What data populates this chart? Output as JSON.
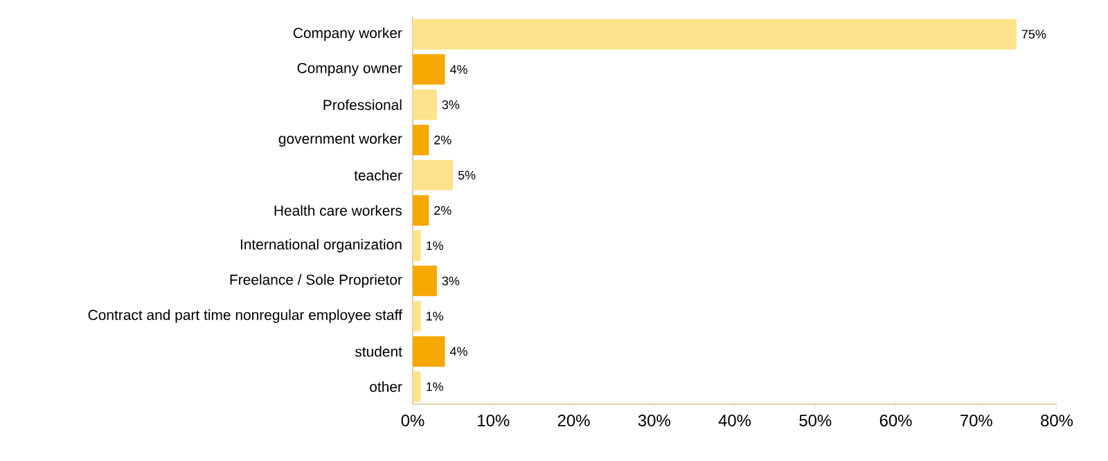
{
  "chart_data": {
    "type": "bar",
    "orientation": "horizontal",
    "categories": [
      "Company worker",
      "Company owner",
      "Professional",
      "government worker",
      "teacher",
      "Health care workers",
      "International organization",
      "Freelance / Sole Proprietor",
      "Contract and part time nonregular employee staff",
      "student",
      "other"
    ],
    "values": [
      75,
      4,
      3,
      2,
      5,
      2,
      1,
      3,
      1,
      4,
      1
    ],
    "value_labels": [
      "75%",
      "4%",
      "3%",
      "2%",
      "5%",
      "2%",
      "1%",
      "3%",
      "1%",
      "4%",
      "1%"
    ],
    "colors": [
      "#fee28c",
      "#f5a800",
      "#fee28c",
      "#f5a800",
      "#fee28c",
      "#f5a800",
      "#fee28c",
      "#f5a800",
      "#fee28c",
      "#f5a800",
      "#fee28c"
    ],
    "xlim": [
      0,
      80
    ],
    "xticks": [
      {
        "value": 0,
        "label": "0%"
      },
      {
        "value": 10,
        "label": "10%"
      },
      {
        "value": 20,
        "label": "20%"
      },
      {
        "value": 30,
        "label": "30%"
      },
      {
        "value": 40,
        "label": "40%"
      },
      {
        "value": 50,
        "label": "50%"
      },
      {
        "value": 60,
        "label": "60%"
      },
      {
        "value": 70,
        "label": "70%"
      },
      {
        "value": 80,
        "label": "80%"
      }
    ],
    "grid": false
  }
}
